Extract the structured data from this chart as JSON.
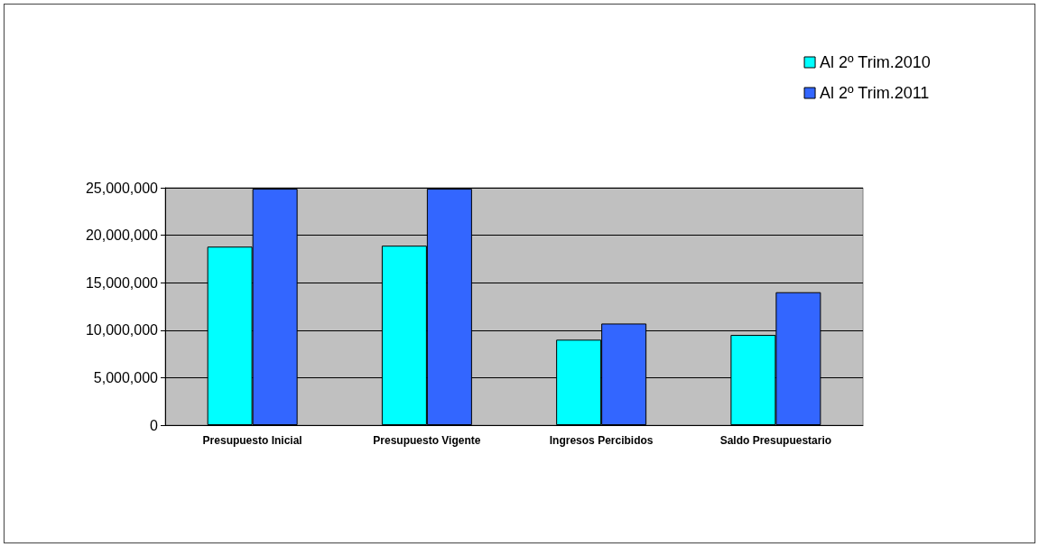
{
  "chart_data": {
    "type": "bar",
    "categories": [
      "Presupuesto Inicial",
      "Presupuesto Vigente",
      "Ingresos Percibidos",
      "Saldo Presupuestario"
    ],
    "series": [
      {
        "name": "Al 2º Trim.2010",
        "color": "#00ffff",
        "values": [
          18800000,
          18900000,
          9000000,
          9500000
        ]
      },
      {
        "name": "Al 2º Trim.2011",
        "color": "#3366ff",
        "values": [
          24900000,
          24900000,
          10700000,
          14000000
        ]
      }
    ],
    "ylim": [
      0,
      25000000
    ],
    "yticks": [
      {
        "value": 0,
        "label": "0"
      },
      {
        "value": 5000000,
        "label": "5,000,000"
      },
      {
        "value": 10000000,
        "label": "10,000,000"
      },
      {
        "value": 15000000,
        "label": "15,000,000"
      },
      {
        "value": 20000000,
        "label": "20,000,000"
      },
      {
        "value": 25000000,
        "label": "25,000,000"
      }
    ],
    "grid": "y",
    "legend": "top right"
  }
}
